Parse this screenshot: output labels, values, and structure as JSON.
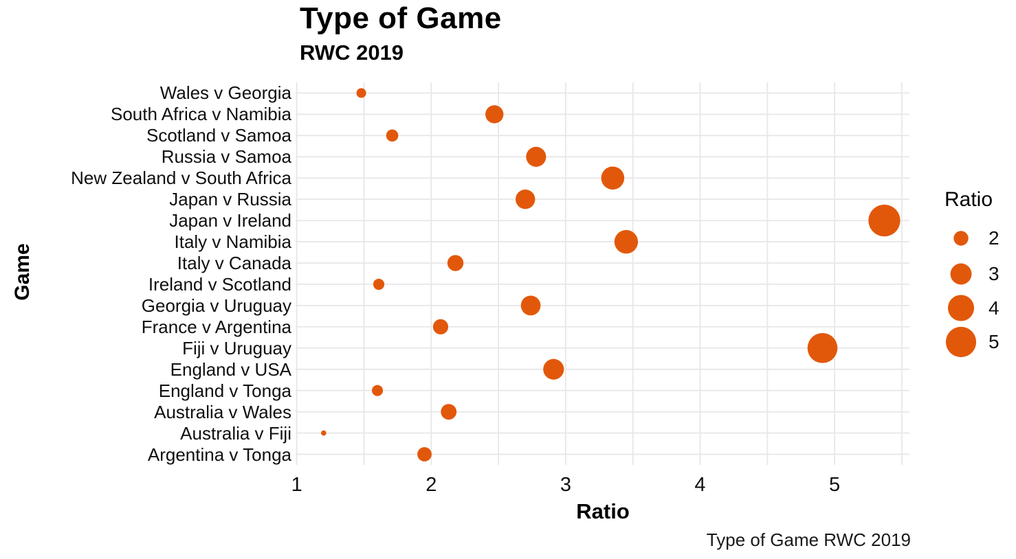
{
  "chart_data": {
    "type": "scatter",
    "subtype": "bubble",
    "title": "Type of Game",
    "subtitle": "RWC 2019",
    "caption": "Type of Game RWC 2019",
    "xlabel": "Ratio",
    "ylabel": "Game",
    "categories": [
      "Wales v Georgia",
      "South Africa v Namibia",
      "Scotland v Samoa",
      "Russia v Samoa",
      "New Zealand v South Africa",
      "Japan v Russia",
      "Japan v Ireland",
      "Italy v Namibia",
      "Italy v Canada",
      "Ireland v Scotland",
      "Georgia v Uruguay",
      "France v Argentina",
      "Fiji v Uruguay",
      "England v USA",
      "England v Tonga",
      "Australia v Wales",
      "Australia v Fiji",
      "Argentina v Tonga"
    ],
    "values": [
      1.48,
      2.47,
      1.71,
      2.78,
      3.35,
      2.7,
      5.37,
      3.45,
      2.18,
      1.61,
      2.74,
      2.07,
      4.91,
      2.91,
      1.6,
      2.13,
      1.2,
      1.95
    ],
    "x_ticks": [
      1,
      2,
      3,
      4,
      5
    ],
    "x_range": [
      1.0,
      5.55
    ],
    "grid": "on",
    "grid_minor_x_step": 0.5,
    "legend": {
      "title": "Ratio",
      "entries": [
        2,
        3,
        4,
        5
      ],
      "position": "right"
    },
    "colors": {
      "bubble": "#E2580B",
      "grid": "#E8E8E8",
      "text": "#000000",
      "background": "#FFFFFF"
    }
  }
}
